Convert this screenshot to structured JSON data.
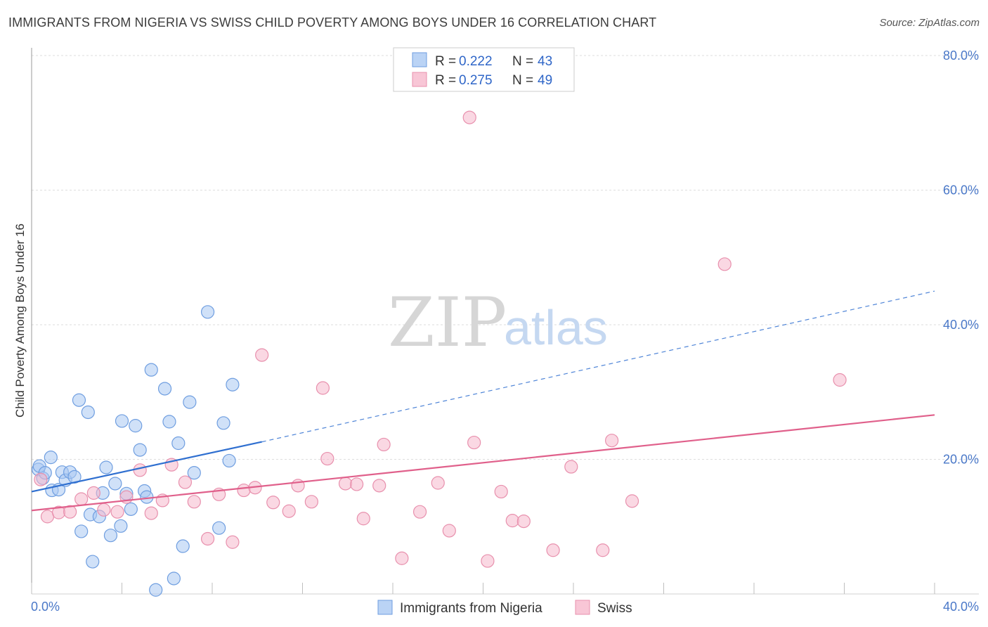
{
  "header": {
    "title": "IMMIGRANTS FROM NIGERIA VS SWISS CHILD POVERTY AMONG BOYS UNDER 16 CORRELATION CHART",
    "source": "Source: ZipAtlas.com"
  },
  "watermark": {
    "zip": "ZIP",
    "atlas": "atlas"
  },
  "legend": {
    "rows": [
      {
        "r_label": "R =",
        "r_value": "0.222",
        "n_label": "N =",
        "n_value": "43",
        "color": "#a9c8f2"
      },
      {
        "r_label": "R =",
        "r_value": "0.275",
        "n_label": "N =",
        "n_value": "49",
        "color": "#f6b8cc"
      }
    ]
  },
  "bottom_legend": [
    {
      "label": "Immigrants from Nigeria",
      "color": "#a9c8f2"
    },
    {
      "label": "Swiss",
      "color": "#f6b8cc"
    }
  ],
  "chart_data": {
    "type": "scatter",
    "title": "IMMIGRANTS FROM NIGERIA VS SWISS CHILD POVERTY AMONG BOYS UNDER 16 CORRELATION CHART",
    "xlabel": "",
    "ylabel": "Child Poverty Among Boys Under 16",
    "xlim": [
      0,
      40
    ],
    "ylim": [
      0,
      82
    ],
    "x_tick_labels": [
      "0.0%",
      "40.0%"
    ],
    "y_ticks": [
      20,
      40,
      60,
      80
    ],
    "y_tick_labels": [
      "20.0%",
      "40.0%",
      "60.0%",
      "80.0%"
    ],
    "grid": true,
    "series": [
      {
        "name": "Immigrants from Nigeria",
        "color": "#a9c8f2",
        "stroke": "#6f9ee0",
        "trend_color": "#2f6fd0",
        "trend": {
          "x0": 0,
          "y0": 15.2,
          "x1": 10.2,
          "y1": 22.6,
          "dashed_to_x": 40,
          "dashed_to_y": 45
        },
        "points": [
          [
            0.3,
            18.5
          ],
          [
            0.35,
            19.0
          ],
          [
            0.5,
            17.2
          ],
          [
            0.6,
            18.0
          ],
          [
            0.85,
            20.3
          ],
          [
            0.9,
            15.4
          ],
          [
            1.2,
            15.5
          ],
          [
            1.35,
            18.1
          ],
          [
            1.5,
            16.9
          ],
          [
            1.7,
            18.1
          ],
          [
            1.9,
            17.4
          ],
          [
            2.1,
            28.8
          ],
          [
            2.2,
            9.3
          ],
          [
            2.5,
            27.0
          ],
          [
            2.6,
            11.8
          ],
          [
            2.7,
            4.8
          ],
          [
            3.0,
            11.5
          ],
          [
            3.15,
            15.0
          ],
          [
            3.3,
            18.8
          ],
          [
            3.5,
            8.7
          ],
          [
            3.7,
            16.4
          ],
          [
            3.95,
            10.1
          ],
          [
            4.0,
            25.7
          ],
          [
            4.2,
            14.9
          ],
          [
            4.4,
            12.6
          ],
          [
            4.6,
            25.0
          ],
          [
            4.8,
            21.4
          ],
          [
            5.0,
            15.3
          ],
          [
            5.1,
            14.4
          ],
          [
            5.3,
            33.3
          ],
          [
            5.5,
            0.6
          ],
          [
            5.9,
            30.5
          ],
          [
            6.1,
            25.6
          ],
          [
            6.3,
            2.3
          ],
          [
            6.5,
            22.4
          ],
          [
            6.7,
            7.1
          ],
          [
            7.0,
            28.5
          ],
          [
            7.2,
            18.0
          ],
          [
            7.8,
            41.9
          ],
          [
            8.3,
            9.8
          ],
          [
            8.5,
            25.4
          ],
          [
            8.75,
            19.8
          ],
          [
            8.9,
            31.1
          ]
        ]
      },
      {
        "name": "Swiss",
        "color": "#f6b8cc",
        "stroke": "#e890ad",
        "trend_color": "#e0608b",
        "trend": {
          "x0": 0,
          "y0": 12.4,
          "x1": 40,
          "y1": 26.6
        },
        "points": [
          [
            0.4,
            17.0
          ],
          [
            0.7,
            11.5
          ],
          [
            1.2,
            12.1
          ],
          [
            1.7,
            12.2
          ],
          [
            2.2,
            14.1
          ],
          [
            2.75,
            15.0
          ],
          [
            3.2,
            12.5
          ],
          [
            3.8,
            12.2
          ],
          [
            4.2,
            14.4
          ],
          [
            4.8,
            18.4
          ],
          [
            5.3,
            12.0
          ],
          [
            5.8,
            13.9
          ],
          [
            6.2,
            19.2
          ],
          [
            6.8,
            16.6
          ],
          [
            7.2,
            13.7
          ],
          [
            8.3,
            14.8
          ],
          [
            7.8,
            8.2
          ],
          [
            8.9,
            7.7
          ],
          [
            9.4,
            15.4
          ],
          [
            9.9,
            15.8
          ],
          [
            10.2,
            35.5
          ],
          [
            10.7,
            13.6
          ],
          [
            11.4,
            12.3
          ],
          [
            11.8,
            16.1
          ],
          [
            12.4,
            13.7
          ],
          [
            12.9,
            30.6
          ],
          [
            13.1,
            20.1
          ],
          [
            13.9,
            16.4
          ],
          [
            14.4,
            16.3
          ],
          [
            14.7,
            11.2
          ],
          [
            15.4,
            16.1
          ],
          [
            15.6,
            22.2
          ],
          [
            16.4,
            5.3
          ],
          [
            17.2,
            12.2
          ],
          [
            18.0,
            16.5
          ],
          [
            18.5,
            9.4
          ],
          [
            19.4,
            70.8
          ],
          [
            19.6,
            22.5
          ],
          [
            20.2,
            4.9
          ],
          [
            20.8,
            15.2
          ],
          [
            21.3,
            10.9
          ],
          [
            21.8,
            10.8
          ],
          [
            23.1,
            6.5
          ],
          [
            23.9,
            18.9
          ],
          [
            25.3,
            6.5
          ],
          [
            25.7,
            22.8
          ],
          [
            26.6,
            13.8
          ],
          [
            30.7,
            49.0
          ],
          [
            35.8,
            31.8
          ]
        ]
      }
    ]
  }
}
